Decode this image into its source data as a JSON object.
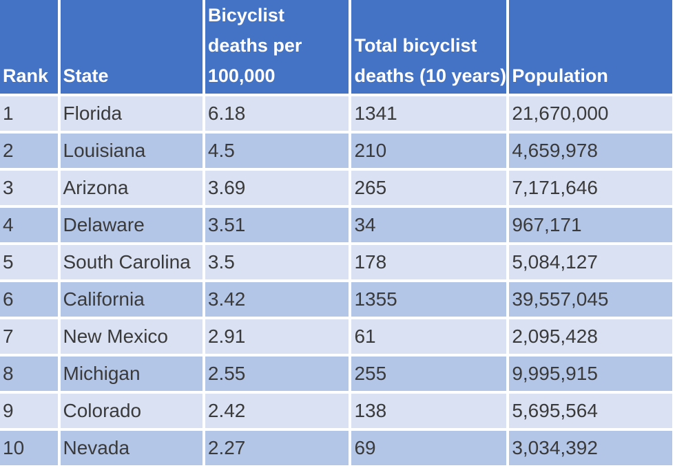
{
  "table": {
    "headers": [
      "Rank",
      "State",
      "Bicyclist deaths per 100,000",
      "Total bicyclist deaths (10 years)",
      "Population"
    ],
    "rows": [
      [
        "1",
        "Florida",
        "6.18",
        "1341",
        "21,670,000"
      ],
      [
        "2",
        "Louisiana",
        "4.5",
        "210",
        "4,659,978"
      ],
      [
        "3",
        "Arizona",
        "3.69",
        "265",
        "7,171,646"
      ],
      [
        "4",
        "Delaware",
        "3.51",
        "34",
        "967,171"
      ],
      [
        "5",
        "South Carolina",
        "3.5",
        "178",
        "5,084,127"
      ],
      [
        "6",
        "California",
        "3.42",
        "1355",
        "39,557,045"
      ],
      [
        "7",
        "New Mexico",
        "2.91",
        "61",
        "2,095,428"
      ],
      [
        "8",
        "Michigan",
        "2.55",
        "255",
        "9,995,915"
      ],
      [
        "9",
        "Colorado",
        "2.42",
        "138",
        "5,695,564"
      ],
      [
        "10",
        "Nevada",
        "2.27",
        "69",
        "3,034,392"
      ]
    ]
  },
  "colors": {
    "header": "#4472c4",
    "row_light": "#d9e1f2",
    "row_dark": "#b4c6e7",
    "header_text": "#ffffff",
    "cell_text": "#3a3a3a"
  }
}
